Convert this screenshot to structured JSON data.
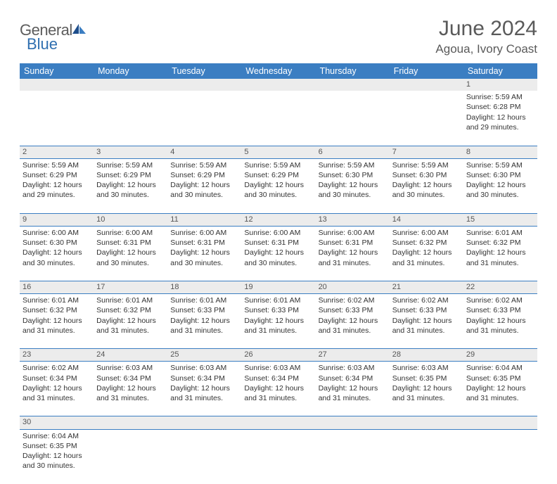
{
  "logo": {
    "general": "General",
    "blue": "Blue"
  },
  "title": {
    "month": "June 2024",
    "location": "Agoua, Ivory Coast"
  },
  "colors": {
    "header_bg": "#3b7ec2",
    "header_text": "#ffffff",
    "daynum_bg": "#ececec",
    "border": "#3b7ec2",
    "text": "#333333"
  },
  "day_headers": [
    "Sunday",
    "Monday",
    "Tuesday",
    "Wednesday",
    "Thursday",
    "Friday",
    "Saturday"
  ],
  "weeks": [
    [
      null,
      null,
      null,
      null,
      null,
      null,
      {
        "n": "1",
        "sunrise": "5:59 AM",
        "sunset": "6:28 PM",
        "dl": "12 hours and 29 minutes."
      }
    ],
    [
      {
        "n": "2",
        "sunrise": "5:59 AM",
        "sunset": "6:29 PM",
        "dl": "12 hours and 29 minutes."
      },
      {
        "n": "3",
        "sunrise": "5:59 AM",
        "sunset": "6:29 PM",
        "dl": "12 hours and 30 minutes."
      },
      {
        "n": "4",
        "sunrise": "5:59 AM",
        "sunset": "6:29 PM",
        "dl": "12 hours and 30 minutes."
      },
      {
        "n": "5",
        "sunrise": "5:59 AM",
        "sunset": "6:29 PM",
        "dl": "12 hours and 30 minutes."
      },
      {
        "n": "6",
        "sunrise": "5:59 AM",
        "sunset": "6:30 PM",
        "dl": "12 hours and 30 minutes."
      },
      {
        "n": "7",
        "sunrise": "5:59 AM",
        "sunset": "6:30 PM",
        "dl": "12 hours and 30 minutes."
      },
      {
        "n": "8",
        "sunrise": "5:59 AM",
        "sunset": "6:30 PM",
        "dl": "12 hours and 30 minutes."
      }
    ],
    [
      {
        "n": "9",
        "sunrise": "6:00 AM",
        "sunset": "6:30 PM",
        "dl": "12 hours and 30 minutes."
      },
      {
        "n": "10",
        "sunrise": "6:00 AM",
        "sunset": "6:31 PM",
        "dl": "12 hours and 30 minutes."
      },
      {
        "n": "11",
        "sunrise": "6:00 AM",
        "sunset": "6:31 PM",
        "dl": "12 hours and 30 minutes."
      },
      {
        "n": "12",
        "sunrise": "6:00 AM",
        "sunset": "6:31 PM",
        "dl": "12 hours and 30 minutes."
      },
      {
        "n": "13",
        "sunrise": "6:00 AM",
        "sunset": "6:31 PM",
        "dl": "12 hours and 31 minutes."
      },
      {
        "n": "14",
        "sunrise": "6:00 AM",
        "sunset": "6:32 PM",
        "dl": "12 hours and 31 minutes."
      },
      {
        "n": "15",
        "sunrise": "6:01 AM",
        "sunset": "6:32 PM",
        "dl": "12 hours and 31 minutes."
      }
    ],
    [
      {
        "n": "16",
        "sunrise": "6:01 AM",
        "sunset": "6:32 PM",
        "dl": "12 hours and 31 minutes."
      },
      {
        "n": "17",
        "sunrise": "6:01 AM",
        "sunset": "6:32 PM",
        "dl": "12 hours and 31 minutes."
      },
      {
        "n": "18",
        "sunrise": "6:01 AM",
        "sunset": "6:33 PM",
        "dl": "12 hours and 31 minutes."
      },
      {
        "n": "19",
        "sunrise": "6:01 AM",
        "sunset": "6:33 PM",
        "dl": "12 hours and 31 minutes."
      },
      {
        "n": "20",
        "sunrise": "6:02 AM",
        "sunset": "6:33 PM",
        "dl": "12 hours and 31 minutes."
      },
      {
        "n": "21",
        "sunrise": "6:02 AM",
        "sunset": "6:33 PM",
        "dl": "12 hours and 31 minutes."
      },
      {
        "n": "22",
        "sunrise": "6:02 AM",
        "sunset": "6:33 PM",
        "dl": "12 hours and 31 minutes."
      }
    ],
    [
      {
        "n": "23",
        "sunrise": "6:02 AM",
        "sunset": "6:34 PM",
        "dl": "12 hours and 31 minutes."
      },
      {
        "n": "24",
        "sunrise": "6:03 AM",
        "sunset": "6:34 PM",
        "dl": "12 hours and 31 minutes."
      },
      {
        "n": "25",
        "sunrise": "6:03 AM",
        "sunset": "6:34 PM",
        "dl": "12 hours and 31 minutes."
      },
      {
        "n": "26",
        "sunrise": "6:03 AM",
        "sunset": "6:34 PM",
        "dl": "12 hours and 31 minutes."
      },
      {
        "n": "27",
        "sunrise": "6:03 AM",
        "sunset": "6:34 PM",
        "dl": "12 hours and 31 minutes."
      },
      {
        "n": "28",
        "sunrise": "6:03 AM",
        "sunset": "6:35 PM",
        "dl": "12 hours and 31 minutes."
      },
      {
        "n": "29",
        "sunrise": "6:04 AM",
        "sunset": "6:35 PM",
        "dl": "12 hours and 31 minutes."
      }
    ],
    [
      {
        "n": "30",
        "sunrise": "6:04 AM",
        "sunset": "6:35 PM",
        "dl": "12 hours and 30 minutes."
      },
      null,
      null,
      null,
      null,
      null,
      null
    ]
  ],
  "labels": {
    "sunrise": "Sunrise: ",
    "sunset": "Sunset: ",
    "daylight": "Daylight: "
  }
}
